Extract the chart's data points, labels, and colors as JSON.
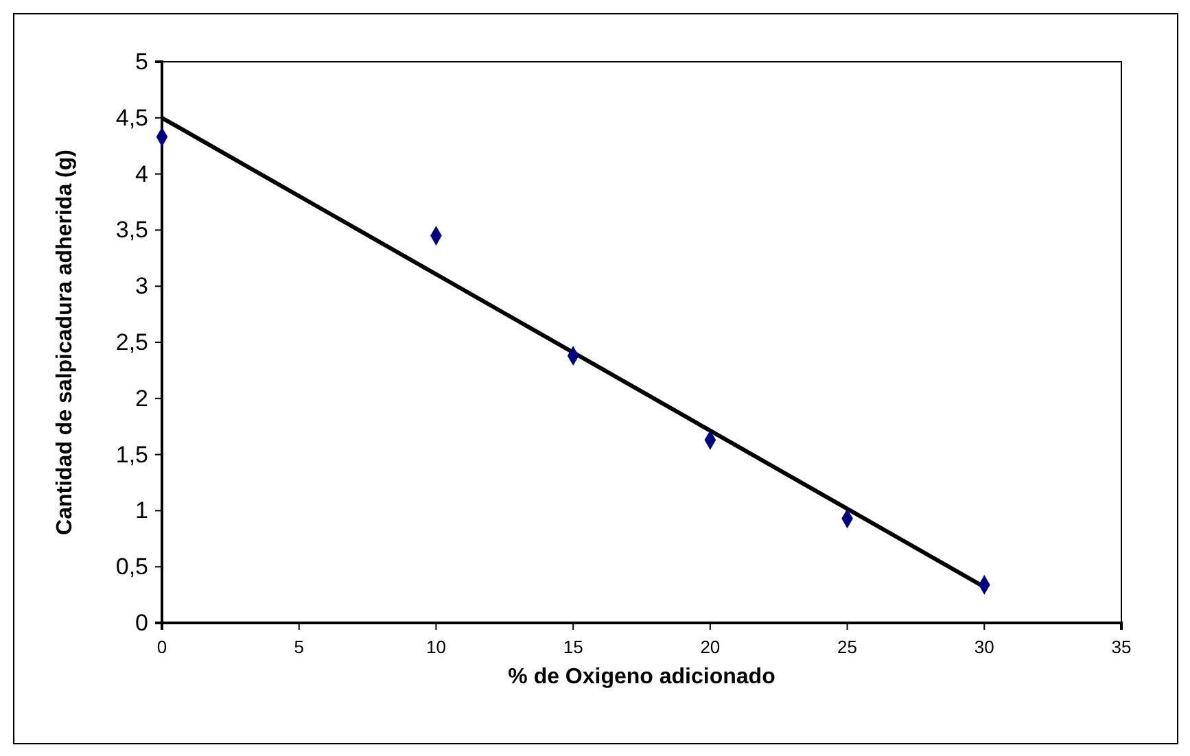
{
  "chart_data": {
    "type": "scatter",
    "xlabel": "% de Oxigeno adicionado",
    "ylabel": "Cantidad de salpicadura adherida (g)",
    "x": [
      0,
      10,
      15,
      20,
      25,
      30
    ],
    "series": [
      {
        "color": "#000080",
        "marker": "diamond",
        "values": [
          4.33,
          3.45,
          2.38,
          1.63,
          0.93,
          0.34
        ]
      },
      {
        "type": "line",
        "color": "#000000",
        "x": [
          0,
          30
        ],
        "values": [
          4.5,
          0.32
        ]
      }
    ],
    "xlim": [
      0,
      35
    ],
    "xticks": [
      0,
      5,
      10,
      15,
      20,
      25,
      30,
      35
    ],
    "ylim": [
      0,
      5
    ],
    "yticks": [
      0,
      {
        "value": 0.5,
        "label": "0,5"
      },
      1,
      {
        "value": 1.5,
        "label": "1,5"
      },
      2,
      {
        "value": 2.5,
        "label": "2,5"
      },
      3,
      {
        "value": 3.5,
        "label": "3,5"
      },
      4,
      {
        "value": 4.5,
        "label": "4,5"
      },
      5
    ],
    "grid": false
  }
}
